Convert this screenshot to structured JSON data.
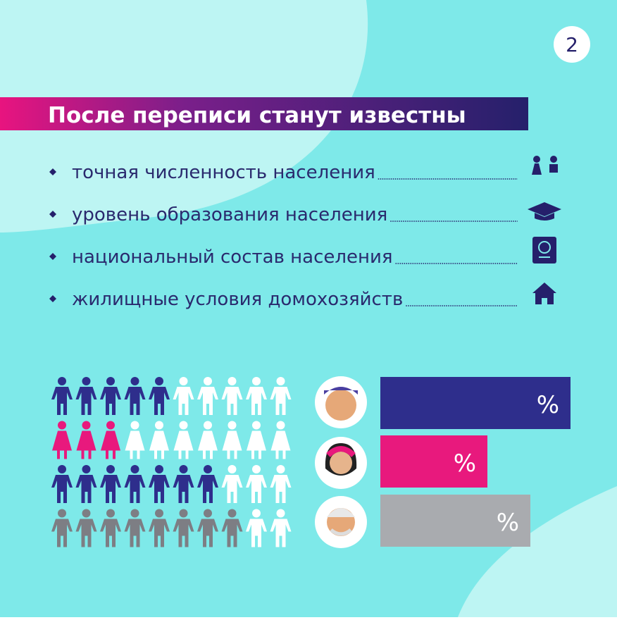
{
  "page_number": "2",
  "title": "После переписи станут известны",
  "items": [
    "точная численность населения",
    "уровень образования населения",
    "национальный состав населения",
    "жилищные условия домохозяйств"
  ],
  "groups": [
    {
      "filled": 5,
      "total": 10,
      "color": "#2e2e8c",
      "bar_label": "%"
    },
    {
      "filled": 3,
      "total": 10,
      "color": "#e8197d",
      "bar_label": "%"
    },
    {
      "filled": 7,
      "total": 10,
      "color": "#2e2e8c",
      "bar_label": "%"
    },
    {
      "filled": 8,
      "total": 10,
      "color": "#7d7e84",
      "bar_label": "%"
    }
  ]
}
